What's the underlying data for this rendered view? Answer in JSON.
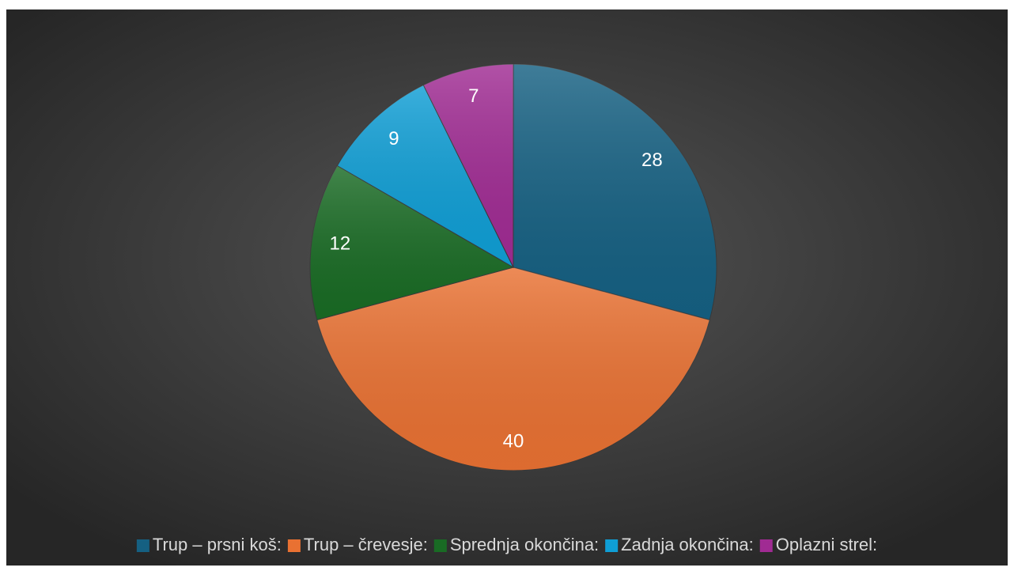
{
  "chart_data": {
    "type": "pie",
    "categories": [
      "Trup – prsni koš:",
      "Trup – črevesje:",
      "Sprednja okončina:",
      "Zadnja okončina:",
      "Oplazni strel:"
    ],
    "values": [
      28,
      40,
      12,
      9,
      7
    ],
    "colors": [
      "#156082",
      "#e97132",
      "#196b24",
      "#0f9ed5",
      "#a02b93"
    ],
    "legend": "bottom"
  }
}
